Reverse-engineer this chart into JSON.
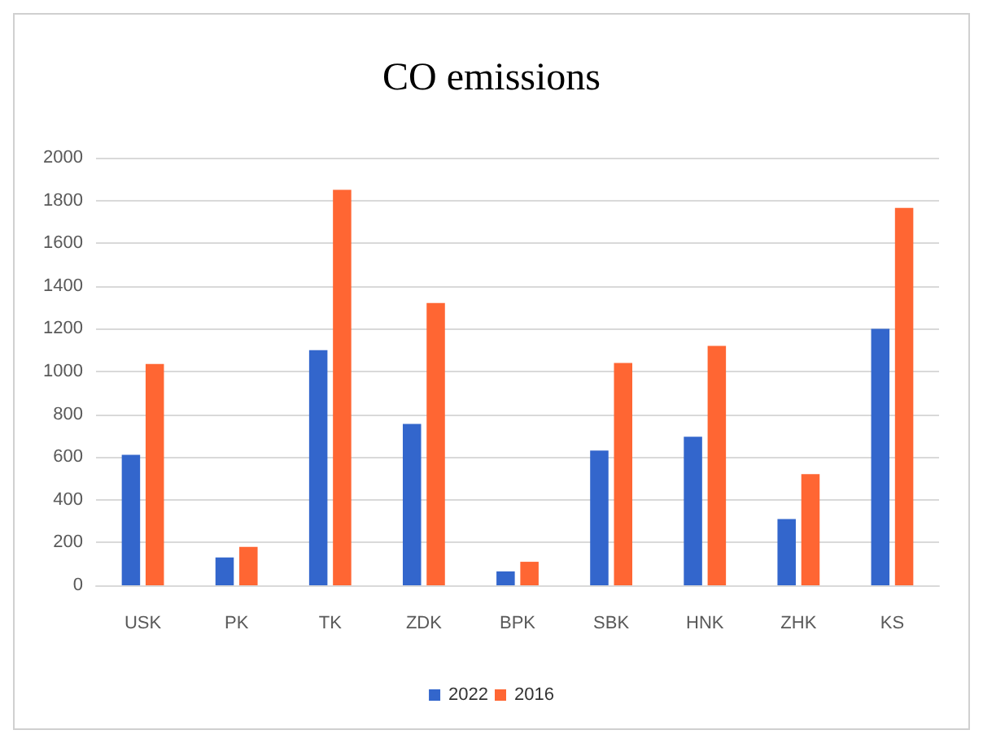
{
  "chart_data": {
    "type": "bar",
    "title": "CO emissions",
    "categories": [
      "USK",
      "PK",
      "TK",
      "ZDK",
      "BPK",
      "SBK",
      "HNK",
      "ZHK",
      "KS"
    ],
    "series": [
      {
        "name": "2022",
        "color": "#3366cc",
        "values": [
          610,
          130,
          1100,
          755,
          65,
          630,
          695,
          310,
          1200
        ]
      },
      {
        "name": "2016",
        "color": "#ff6633",
        "values": [
          1035,
          180,
          1850,
          1320,
          110,
          1040,
          1120,
          520,
          1765
        ]
      }
    ],
    "ylim": [
      0,
      2000
    ],
    "yticks": [
      0,
      200,
      400,
      600,
      800,
      1000,
      1200,
      1400,
      1600,
      1800,
      2000
    ],
    "grid": "y",
    "legend": "bottom"
  }
}
